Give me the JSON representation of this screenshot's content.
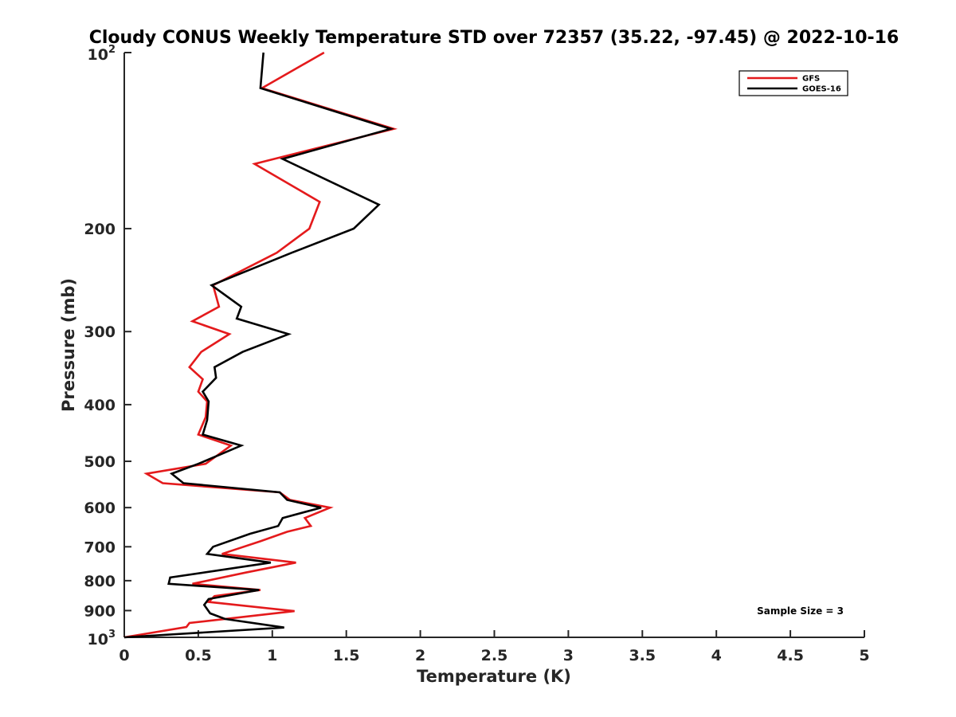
{
  "chart_data": {
    "type": "line",
    "title": "Cloudy CONUS Weekly Temperature STD over 72357 (35.22, -97.45) @ 2022-10-16",
    "xlabel": "Temperature (K)",
    "ylabel": "Pressure (mb)",
    "xlim": [
      0,
      5
    ],
    "ylim": [
      100,
      1000
    ],
    "y_scale": "log",
    "y_reversed": true,
    "grid": false,
    "legend_position": "top-right",
    "annotation": "Sample Size = 3",
    "x_ticks": [
      {
        "value": 0,
        "label": "0"
      },
      {
        "value": 0.5,
        "label": "0.5"
      },
      {
        "value": 1,
        "label": "1"
      },
      {
        "value": 1.5,
        "label": "1.5"
      },
      {
        "value": 2,
        "label": "2"
      },
      {
        "value": 2.5,
        "label": "2.5"
      },
      {
        "value": 3,
        "label": "3"
      },
      {
        "value": 3.5,
        "label": "3.5"
      },
      {
        "value": 4,
        "label": "4"
      },
      {
        "value": 4.5,
        "label": "4.5"
      },
      {
        "value": 5,
        "label": "5"
      }
    ],
    "y_ticks": [
      {
        "value": 100,
        "base": "10",
        "exp": "2"
      },
      {
        "value": 200,
        "label": "200"
      },
      {
        "value": 300,
        "label": "300"
      },
      {
        "value": 400,
        "label": "400"
      },
      {
        "value": 500,
        "label": "500"
      },
      {
        "value": 600,
        "label": "600"
      },
      {
        "value": 700,
        "label": "700"
      },
      {
        "value": 800,
        "label": "800"
      },
      {
        "value": 900,
        "label": "900"
      },
      {
        "value": 1000,
        "base": "10",
        "exp": "3"
      }
    ],
    "series": [
      {
        "name": "GFS",
        "color": "#e41a1c",
        "points": [
          [
            1.35,
            100
          ],
          [
            0.93,
            115
          ],
          [
            1.82,
            135
          ],
          [
            0.88,
            155
          ],
          [
            1.32,
            180
          ],
          [
            1.25,
            200
          ],
          [
            1.03,
            220
          ],
          [
            0.6,
            250
          ],
          [
            0.64,
            272
          ],
          [
            0.46,
            288
          ],
          [
            0.71,
            303
          ],
          [
            0.52,
            325
          ],
          [
            0.44,
            345
          ],
          [
            0.53,
            362
          ],
          [
            0.5,
            380
          ],
          [
            0.56,
            395
          ],
          [
            0.55,
            420
          ],
          [
            0.5,
            450
          ],
          [
            0.72,
            470
          ],
          [
            0.55,
            505
          ],
          [
            0.15,
            525
          ],
          [
            0.26,
            545
          ],
          [
            1.05,
            565
          ],
          [
            1.12,
            582
          ],
          [
            1.39,
            600
          ],
          [
            1.22,
            625
          ],
          [
            1.26,
            645
          ],
          [
            1.1,
            660
          ],
          [
            0.92,
            685
          ],
          [
            0.66,
            720
          ],
          [
            1.16,
            745
          ],
          [
            0.82,
            775
          ],
          [
            0.46,
            810
          ],
          [
            0.92,
            830
          ],
          [
            0.61,
            850
          ],
          [
            0.57,
            870
          ],
          [
            1.15,
            902
          ],
          [
            0.44,
            945
          ],
          [
            0.42,
            960
          ],
          [
            0.0,
            1000
          ]
        ]
      },
      {
        "name": "GOES-16",
        "color": "#000000",
        "points": [
          [
            0.94,
            100
          ],
          [
            0.92,
            115
          ],
          [
            1.8,
            135
          ],
          [
            1.07,
            152
          ],
          [
            1.72,
            182
          ],
          [
            1.55,
            200
          ],
          [
            1.13,
            220
          ],
          [
            0.59,
            250
          ],
          [
            0.79,
            272
          ],
          [
            0.76,
            285
          ],
          [
            1.11,
            303
          ],
          [
            0.8,
            325
          ],
          [
            0.61,
            345
          ],
          [
            0.62,
            360
          ],
          [
            0.53,
            380
          ],
          [
            0.57,
            395
          ],
          [
            0.56,
            425
          ],
          [
            0.53,
            450
          ],
          [
            0.79,
            470
          ],
          [
            0.5,
            505
          ],
          [
            0.32,
            525
          ],
          [
            0.4,
            545
          ],
          [
            1.05,
            565
          ],
          [
            1.1,
            582
          ],
          [
            1.33,
            600
          ],
          [
            1.07,
            625
          ],
          [
            1.04,
            645
          ],
          [
            0.85,
            665
          ],
          [
            0.6,
            700
          ],
          [
            0.56,
            720
          ],
          [
            0.99,
            745
          ],
          [
            0.31,
            790
          ],
          [
            0.3,
            810
          ],
          [
            0.91,
            830
          ],
          [
            0.57,
            860
          ],
          [
            0.54,
            880
          ],
          [
            0.58,
            910
          ],
          [
            0.68,
            930
          ],
          [
            1.08,
            962
          ],
          [
            0.0,
            1000
          ]
        ]
      }
    ]
  }
}
